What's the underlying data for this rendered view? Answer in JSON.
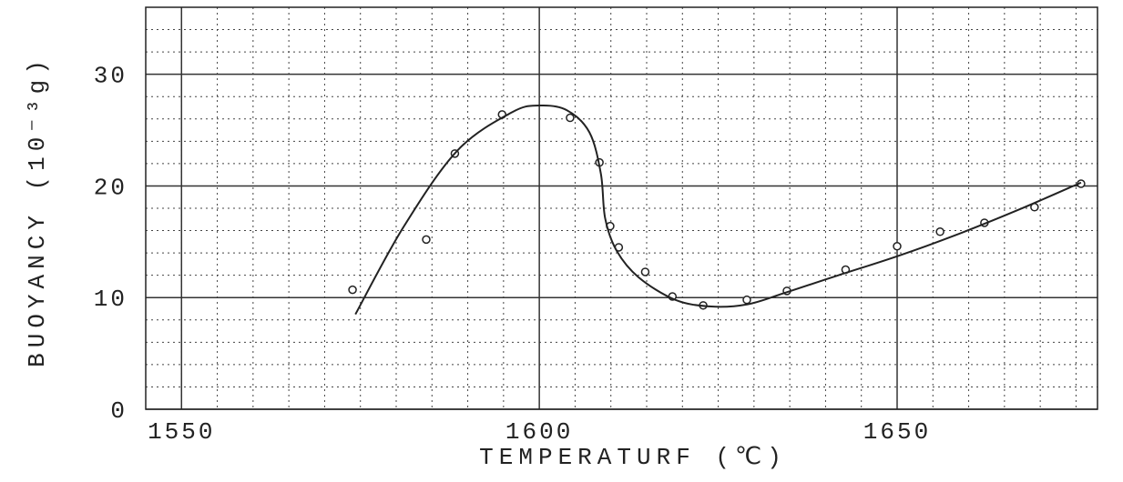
{
  "chart_data": {
    "type": "scatter",
    "xlabel": "TEMPERATURF (℃)",
    "ylabel": "BUOYANCY (10⁻³g)",
    "xlim": [
      1545,
      1678
    ],
    "ylim": [
      0,
      36
    ],
    "xticks": [
      1550,
      1600,
      1650
    ],
    "yticks": [
      0,
      10,
      20,
      30
    ],
    "minor_xticks": [
      1550,
      1555,
      1560,
      1565,
      1570,
      1575,
      1580,
      1585,
      1590,
      1595,
      1605,
      1610,
      1615,
      1620,
      1625,
      1630,
      1635,
      1640,
      1645,
      1655,
      1660,
      1665,
      1670,
      1675
    ],
    "minor_yticks": [
      2,
      4,
      6,
      8,
      12,
      14,
      16,
      18,
      22,
      24,
      26,
      28,
      32,
      34
    ],
    "grid": true,
    "series": [
      {
        "mode": "markers",
        "color": "#222",
        "x": [
          1573.9,
          1584.2,
          1588.2,
          1594.8,
          1604.3,
          1608.4,
          1609.9,
          1611.1,
          1614.8,
          1618.6,
          1622.9,
          1629.0,
          1634.6,
          1642.8,
          1650.0,
          1656.0,
          1662.2,
          1669.2,
          1675.7
        ],
        "values": [
          10.7,
          15.2,
          22.9,
          26.4,
          26.1,
          22.1,
          16.4,
          14.5,
          12.3,
          10.1,
          9.3,
          9.8,
          10.6,
          12.5,
          14.6,
          15.9,
          16.7,
          18.1,
          20.2
        ]
      },
      {
        "mode": "line",
        "color": "#222",
        "x": [
          1574.3,
          1581.0,
          1588.6,
          1596.2,
          1600.0,
          1603.8,
          1607.0,
          1608.6,
          1609.2,
          1610.8,
          1613.9,
          1619.0,
          1624.0,
          1629.1,
          1634.2,
          1641.8,
          1650.0,
          1658.2,
          1667.1,
          1675.7
        ],
        "values": [
          8.5,
          16.3,
          23.2,
          26.6,
          27.2,
          26.8,
          24.8,
          21.1,
          17.1,
          14.2,
          11.8,
          9.8,
          9.2,
          9.4,
          10.4,
          12.0,
          13.7,
          15.6,
          17.9,
          20.3
        ]
      }
    ]
  }
}
